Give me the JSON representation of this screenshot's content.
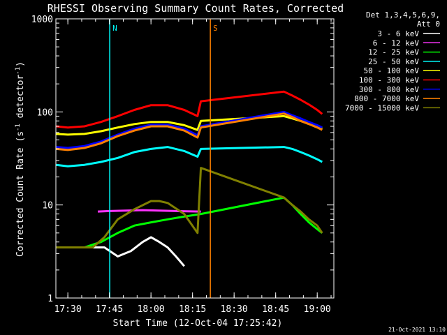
{
  "chart_data": {
    "type": "line",
    "title": "RHESSI Observing Summary Count Rates, Corrected",
    "xlabel": "Start Time (12-Oct-04 17:25:42)",
    "ylabel_main": "Corrected Count Rate (s",
    "ylabel_sup1": "-1",
    "ylabel_mid": " detector",
    "ylabel_sup2": "-1",
    "ylabel_end": ")",
    "yscale": "log",
    "ylim": [
      1,
      1000
    ],
    "xlim": [
      17.428,
      19.1
    ],
    "x_ticks": [
      {
        "value": 17.5,
        "label": "17:30"
      },
      {
        "value": 17.75,
        "label": "17:45"
      },
      {
        "value": 18.0,
        "label": "18:00"
      },
      {
        "value": 18.25,
        "label": "18:15"
      },
      {
        "value": 18.5,
        "label": "18:30"
      },
      {
        "value": 18.75,
        "label": "18:45"
      },
      {
        "value": 19.0,
        "label": "19:00"
      }
    ],
    "y_ticks": [
      {
        "value": 1,
        "label": "1"
      },
      {
        "value": 10,
        "label": "10"
      },
      {
        "value": 100,
        "label": "100"
      },
      {
        "value": 1000,
        "label": "1000"
      }
    ],
    "legend_header": [
      "Det 1,3,4,5,6,9,",
      "Att 0"
    ],
    "legend_position": "right",
    "series": [
      {
        "name": "3 - 6 keV",
        "color": "#ffffff",
        "x": [
          17.43,
          17.55,
          17.65,
          17.72,
          17.8,
          17.88,
          17.95,
          18.0,
          18.05,
          18.1,
          18.15,
          18.2,
          18.3,
          18.76,
          18.82
        ],
        "y": [
          3.5,
          3.5,
          3.5,
          3.5,
          2.8,
          3.2,
          4,
          4.5,
          4,
          3.5,
          2.8,
          2.2,
          null,
          null,
          null
        ]
      },
      {
        "name": "6 - 12 keV",
        "color": "#ff33ff",
        "x": [
          17.68,
          17.75,
          17.85,
          17.95,
          18.05,
          18.15,
          18.3
        ],
        "y": [
          8.5,
          8.6,
          8.7,
          8.8,
          8.7,
          8.6,
          8.5
        ]
      },
      {
        "name": "12 - 25 keV",
        "color": "#00ff00",
        "x": [
          17.43,
          17.6,
          17.7,
          17.8,
          17.9,
          18.0,
          18.1,
          18.2,
          18.3,
          18.8,
          18.85,
          18.9,
          18.95,
          19.0,
          19.03
        ],
        "y": [
          3.5,
          3.5,
          4,
          5,
          6,
          6.5,
          7,
          7.5,
          8,
          12,
          10,
          8,
          6.5,
          5.5,
          5
        ]
      },
      {
        "name": "25 - 50 keV",
        "color": "#00ffff",
        "x": [
          17.43,
          17.5,
          17.6,
          17.7,
          17.8,
          17.9,
          18.0,
          18.1,
          18.2,
          18.28,
          18.3,
          18.8,
          18.85,
          18.9,
          18.95,
          19.0,
          19.03
        ],
        "y": [
          27,
          26,
          27,
          29,
          32,
          37,
          40,
          42,
          38,
          33,
          40,
          42,
          40,
          37,
          34,
          31,
          29
        ]
      },
      {
        "name": "50 - 100 keV",
        "color": "#ffff00",
        "x": [
          17.43,
          17.5,
          17.6,
          17.7,
          17.8,
          17.9,
          18.0,
          18.1,
          18.2,
          18.28,
          18.3,
          18.8,
          18.85,
          18.9,
          18.95,
          19.0,
          19.03
        ],
        "y": [
          58,
          57,
          58,
          62,
          68,
          74,
          78,
          78,
          72,
          64,
          80,
          90,
          85,
          80,
          75,
          70,
          66
        ]
      },
      {
        "name": "100 - 300 keV",
        "color": "#ff0000",
        "x": [
          17.43,
          17.5,
          17.6,
          17.7,
          17.8,
          17.9,
          18.0,
          18.1,
          18.2,
          18.28,
          18.3,
          18.8,
          18.85,
          18.9,
          18.95,
          19.0,
          19.03
        ],
        "y": [
          70,
          68,
          70,
          78,
          90,
          105,
          118,
          118,
          105,
          90,
          130,
          165,
          150,
          135,
          120,
          105,
          95
        ]
      },
      {
        "name": "300 - 800 keV",
        "color": "#0000ff",
        "x": [
          17.43,
          17.5,
          17.6,
          17.7,
          17.8,
          17.9,
          18.0,
          18.1,
          18.2,
          18.28,
          18.3,
          18.8,
          18.85,
          18.9,
          18.95,
          19.0,
          19.03
        ],
        "y": [
          42,
          41,
          43,
          48,
          57,
          66,
          73,
          73,
          66,
          56,
          70,
          100,
          92,
          85,
          78,
          72,
          68
        ]
      },
      {
        "name": "800 - 7000 keV",
        "color": "#ff8000",
        "x": [
          17.43,
          17.5,
          17.6,
          17.7,
          17.8,
          17.9,
          18.0,
          18.1,
          18.2,
          18.28,
          18.3,
          18.8,
          18.85,
          18.9,
          18.95,
          19.0,
          19.03
        ],
        "y": [
          40,
          39,
          41,
          46,
          55,
          63,
          70,
          70,
          63,
          53,
          68,
          96,
          88,
          80,
          74,
          68,
          64
        ]
      },
      {
        "name": "7000 - 15000 keV",
        "color": "#808000",
        "x": [
          17.43,
          17.55,
          17.65,
          17.72,
          17.8,
          17.9,
          18.0,
          18.05,
          18.1,
          18.2,
          18.28,
          18.3,
          18.8,
          18.85,
          18.9,
          18.95,
          19.0,
          19.03
        ],
        "y": [
          3.5,
          3.5,
          3.5,
          4.5,
          7,
          9,
          11,
          11,
          10.5,
          8,
          5,
          25,
          12,
          10,
          8.5,
          7,
          6,
          5
        ]
      }
    ],
    "annotations": [
      {
        "label": "N",
        "color": "#00ffff",
        "x": 17.752
      },
      {
        "label": "S",
        "color": "#ff8000",
        "x": 18.357
      }
    ],
    "footer_date": "21-Oct-2021 13:10"
  }
}
